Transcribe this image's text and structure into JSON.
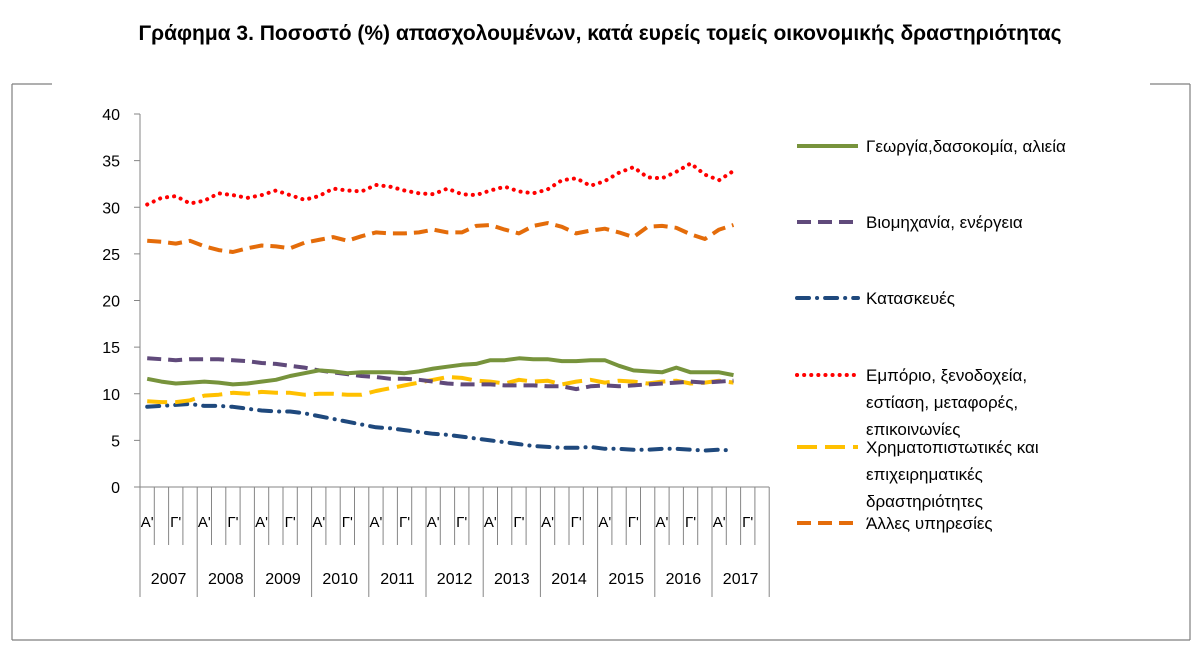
{
  "title": "Γράφημα 3. Ποσοστό (%) απασχολουμένων, κατά ευρείς τομείς οικονομικής δραστηριότητας",
  "colors": {
    "agriculture": "#77933c",
    "industry": "#604a7b",
    "construction": "#1f497d",
    "trade": "#ff0000",
    "finance": "#ffc000",
    "other": "#e46c0a"
  },
  "chart_data": {
    "type": "line",
    "title": "Γράφημα 3. Ποσοστό (%) απασχολουμένων, κατά ευρείς τομείς οικονομικής δραστηριότητας",
    "xlabel": "",
    "ylabel": "",
    "ylim": [
      0,
      40
    ],
    "y_ticks": [
      "0",
      "5",
      "10",
      "15",
      "20",
      "25",
      "30",
      "35",
      "40"
    ],
    "grid": false,
    "legend_position": "right",
    "quarter_labels": [
      "Α'",
      "Γ'"
    ],
    "years": [
      "2007",
      "2008",
      "2009",
      "2010",
      "2011",
      "2012",
      "2013",
      "2014",
      "2015",
      "2016",
      "2017"
    ],
    "x": [
      "2007 Q1",
      "2007 Q2",
      "2007 Q3",
      "2007 Q4",
      "2008 Q1",
      "2008 Q2",
      "2008 Q3",
      "2008 Q4",
      "2009 Q1",
      "2009 Q2",
      "2009 Q3",
      "2009 Q4",
      "2010 Q1",
      "2010 Q2",
      "2010 Q3",
      "2010 Q4",
      "2011 Q1",
      "2011 Q2",
      "2011 Q3",
      "2011 Q4",
      "2012 Q1",
      "2012 Q2",
      "2012 Q3",
      "2012 Q4",
      "2013 Q1",
      "2013 Q2",
      "2013 Q3",
      "2013 Q4",
      "2014 Q1",
      "2014 Q2",
      "2014 Q3",
      "2014 Q4",
      "2015 Q1",
      "2015 Q2",
      "2015 Q3",
      "2015 Q4",
      "2016 Q1",
      "2016 Q2",
      "2016 Q3",
      "2016 Q4",
      "2017 Q1",
      "2017 Q2"
    ],
    "series": [
      {
        "name": "Γεωργία,δασοκομία, αλιεία",
        "color_key": "agriculture",
        "style": "solid",
        "values": [
          11.6,
          11.3,
          11.1,
          11.2,
          11.3,
          11.2,
          11.0,
          11.1,
          11.3,
          11.5,
          11.9,
          12.2,
          12.5,
          12.4,
          12.2,
          12.3,
          12.3,
          12.3,
          12.2,
          12.4,
          12.7,
          12.9,
          13.1,
          13.2,
          13.6,
          13.6,
          13.8,
          13.7,
          13.7,
          13.5,
          13.5,
          13.6,
          13.6,
          13.0,
          12.5,
          12.4,
          12.3,
          12.8,
          12.3,
          12.3,
          12.3,
          12.0
        ]
      },
      {
        "name": "Βιομηχανία, ενέργεια",
        "color_key": "industry",
        "style": "dash",
        "values": [
          13.8,
          13.7,
          13.6,
          13.7,
          13.7,
          13.7,
          13.6,
          13.5,
          13.3,
          13.2,
          13.0,
          12.8,
          12.5,
          12.3,
          12.1,
          11.9,
          11.8,
          11.6,
          11.6,
          11.5,
          11.3,
          11.1,
          11.0,
          11.0,
          11.0,
          10.9,
          10.9,
          10.9,
          10.8,
          10.8,
          10.5,
          10.8,
          10.9,
          10.8,
          10.9,
          11.0,
          11.1,
          11.2,
          11.3,
          11.2,
          11.3,
          11.4
        ]
      },
      {
        "name": "Κατασκευές",
        "color_key": "construction",
        "style": "dashdot",
        "values": [
          8.6,
          8.7,
          8.8,
          8.9,
          8.7,
          8.7,
          8.6,
          8.4,
          8.2,
          8.1,
          8.1,
          7.9,
          7.6,
          7.3,
          7.0,
          6.7,
          6.4,
          6.3,
          6.1,
          5.9,
          5.7,
          5.6,
          5.4,
          5.2,
          5.0,
          4.8,
          4.6,
          4.4,
          4.3,
          4.2,
          4.2,
          4.3,
          4.1,
          4.1,
          4.0,
          4.0,
          4.1,
          4.1,
          4.0,
          3.9,
          4.0,
          3.9
        ]
      },
      {
        "name": "Εμπόριο, ξενοδοχεία, εστίαση, μεταφορές, επικοινωνίες",
        "color_key": "trade",
        "style": "dot",
        "values": [
          30.3,
          31.0,
          31.2,
          30.4,
          30.7,
          31.5,
          31.3,
          31.0,
          31.3,
          31.8,
          31.3,
          30.8,
          31.2,
          32.0,
          31.8,
          31.7,
          32.4,
          32.2,
          31.8,
          31.5,
          31.4,
          32.0,
          31.4,
          31.3,
          31.8,
          32.2,
          31.7,
          31.5,
          31.9,
          32.9,
          33.1,
          32.3,
          32.8,
          33.7,
          34.3,
          33.2,
          33.1,
          33.8,
          34.7,
          33.5,
          32.9,
          33.9
        ]
      },
      {
        "name": "Χρηματοπιστωτικές και επιχειρηματικές δραστηριότητες",
        "color_key": "finance",
        "style": "longdash",
        "values": [
          9.2,
          9.1,
          9.1,
          9.3,
          9.8,
          9.9,
          10.1,
          10.0,
          10.2,
          10.1,
          10.1,
          9.9,
          10.0,
          10.0,
          9.9,
          9.9,
          10.3,
          10.6,
          10.9,
          11.2,
          11.5,
          11.8,
          11.7,
          11.4,
          11.3,
          11.1,
          11.5,
          11.3,
          11.4,
          11.0,
          11.3,
          11.5,
          11.2,
          11.4,
          11.3,
          11.1,
          11.3,
          11.4,
          11.1,
          11.2,
          11.4,
          11.2
        ]
      },
      {
        "name": "Άλλες υπηρεσίες",
        "color_key": "other",
        "style": "dash",
        "values": [
          26.4,
          26.3,
          26.1,
          26.4,
          25.8,
          25.4,
          25.2,
          25.6,
          25.9,
          25.8,
          25.6,
          26.2,
          26.5,
          26.8,
          26.4,
          26.9,
          27.3,
          27.2,
          27.2,
          27.3,
          27.6,
          27.3,
          27.3,
          28.0,
          28.1,
          27.6,
          27.2,
          28.0,
          28.3,
          27.9,
          27.2,
          27.5,
          27.7,
          27.3,
          26.8,
          27.9,
          28.0,
          27.8,
          27.1,
          26.6,
          27.6,
          28.1
        ]
      }
    ]
  },
  "legend": [
    {
      "key": "agriculture",
      "lines": [
        "Γεωργία,δασοκομία, αλιεία"
      ]
    },
    {
      "key": "industry",
      "lines": [
        "Βιομηχανία, ενέργεια"
      ]
    },
    {
      "key": "construction",
      "lines": [
        "Κατασκευές"
      ]
    },
    {
      "key": "trade",
      "lines": [
        "Εμπόριο, ξενοδοχεία,",
        "εστίαση,   μεταφορές,",
        "επικοινωνίες"
      ]
    },
    {
      "key": "finance",
      "lines": [
        "Χρηματοπιστωτικές και",
        "επιχειρηματικές",
        "δραστηριότητες"
      ]
    },
    {
      "key": "other",
      "lines": [
        "Άλλες υπηρεσίες"
      ]
    }
  ]
}
